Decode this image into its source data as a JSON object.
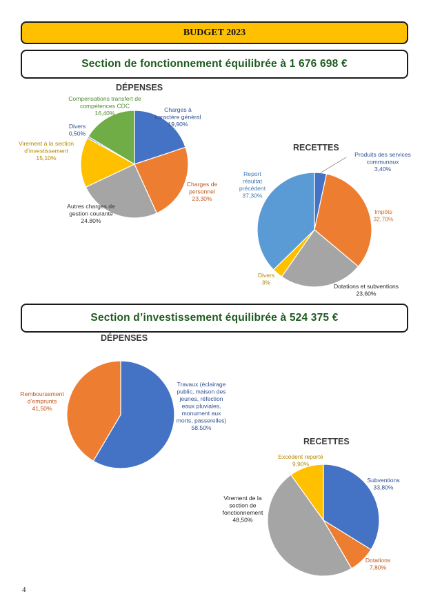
{
  "header": {
    "title": "BUDGET 2023"
  },
  "sections": {
    "fonctionnement": {
      "title": "Section de fonctionnement équilibrée à 1 676 698 €"
    },
    "investissement": {
      "title": "Section d’investissement équilibrée à 524 375 €"
    }
  },
  "page_number": "4",
  "colors": {
    "blue": "#4472c4",
    "orange": "#ed7d31",
    "gray": "#a5a5a5",
    "yellow": "#ffc000",
    "lightblue": "#5b9bd5",
    "green": "#70ad47"
  },
  "chart_data": [
    {
      "type": "pie",
      "title": "DÉPENSES",
      "slices": [
        {
          "label": "Charges à caractère général",
          "pct": "19,90%",
          "value": 19.9,
          "color": "#4472c4"
        },
        {
          "label": "Charges de personnel",
          "pct": "23,30%",
          "value": 23.3,
          "color": "#ed7d31"
        },
        {
          "label": "Autres charges de gestion courante",
          "pct": "24.80%",
          "value": 24.8,
          "color": "#a5a5a5"
        },
        {
          "label": "Virement à la section d’investissement",
          "pct": "15,10%",
          "value": 15.1,
          "color": "#ffc000"
        },
        {
          "label": "Divers",
          "pct": "0,50%",
          "value": 0.5,
          "color": "#5b9bd5"
        },
        {
          "label": "Compensations transfert de compétences CDC",
          "pct": "16,40%",
          "value": 16.4,
          "color": "#70ad47"
        }
      ]
    },
    {
      "type": "pie",
      "title": "RECETTES",
      "slices": [
        {
          "label": "Produits des services communaux",
          "pct": "3,40%",
          "value": 3.4,
          "color": "#4472c4"
        },
        {
          "label": "Impôts",
          "pct": "32,70%",
          "value": 32.7,
          "color": "#ed7d31"
        },
        {
          "label": "Dotations et subventions",
          "pct": "23,60%",
          "value": 23.6,
          "color": "#a5a5a5"
        },
        {
          "label": "Divers",
          "pct": "3%",
          "value": 3,
          "color": "#ffc000"
        },
        {
          "label": "Report résultat précédent",
          "pct": "37,30%",
          "value": 37.3,
          "color": "#5b9bd5"
        }
      ]
    },
    {
      "type": "pie",
      "title": "DÉPENSES",
      "slices": [
        {
          "label": "Travaux (éclairage public, maison des jeunes, réfection eaux pluviales, monument aux morts, passerelles)",
          "pct": "58.50%",
          "value": 58.5,
          "color": "#4472c4"
        },
        {
          "label": "Remboursement d’emprunts",
          "pct": "41,50%",
          "value": 41.5,
          "color": "#ed7d31"
        }
      ]
    },
    {
      "type": "pie",
      "title": "RECETTES",
      "slices": [
        {
          "label": "Subventions",
          "pct": "33,80%",
          "value": 33.8,
          "color": "#4472c4"
        },
        {
          "label": "Dotations",
          "pct": "7,80%",
          "value": 7.8,
          "color": "#ed7d31"
        },
        {
          "label": "Virement de la section de fonctionnement",
          "pct": "48,50%",
          "value": 48.5,
          "color": "#a5a5a5"
        },
        {
          "label": "Excédent reporté",
          "pct": "9,90%",
          "value": 9.9,
          "color": "#ffc000"
        }
      ]
    }
  ]
}
